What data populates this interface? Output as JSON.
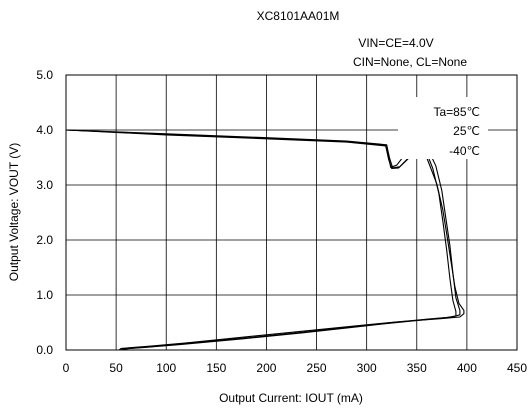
{
  "chart_data": {
    "type": "line",
    "title": "XC8101AA01M",
    "conditions": [
      "VIN=CE=4.0V",
      "CIN=None, CL=None"
    ],
    "xlabel": "Output Current: IOUT (mA)",
    "ylabel": "Output Voltage: VOUT (V)",
    "xlim": [
      0,
      450
    ],
    "ylim": [
      0,
      5
    ],
    "xticks": [
      0,
      50,
      100,
      150,
      200,
      250,
      300,
      350,
      400,
      450
    ],
    "yticks": [
      0,
      1,
      2,
      3,
      4,
      5
    ],
    "xtick_labels": [
      "0",
      "50",
      "100",
      "150",
      "200",
      "250",
      "300",
      "350",
      "400",
      "450"
    ],
    "ytick_labels": [
      "0.0",
      "1.0",
      "2.0",
      "3.0",
      "4.0",
      "5.0"
    ],
    "grid": true,
    "legend_position": "top-right",
    "series": [
      {
        "name": "Ta=85℃",
        "x": [
          0,
          100,
          200,
          280,
          320,
          322,
          324,
          330,
          338,
          346,
          352,
          356,
          362,
          370,
          376,
          380,
          384,
          388,
          392,
          397,
          397,
          393,
          375,
          330,
          295,
          240,
          180,
          120,
          85,
          55,
          53
        ],
        "y": [
          4.0,
          3.93,
          3.86,
          3.8,
          3.73,
          3.5,
          3.32,
          3.36,
          3.55,
          3.67,
          3.72,
          3.68,
          3.4,
          3.02,
          2.55,
          2.1,
          1.62,
          1.15,
          0.85,
          0.72,
          0.66,
          0.6,
          0.57,
          0.51,
          0.45,
          0.35,
          0.24,
          0.13,
          0.07,
          0.03,
          0.0
        ]
      },
      {
        "name": "25℃",
        "x": [
          0,
          100,
          200,
          280,
          320,
          323,
          326,
          333,
          342,
          350,
          357,
          362,
          369,
          375,
          379,
          383,
          386,
          389,
          393,
          393,
          385,
          360,
          320,
          290,
          240,
          180,
          120,
          85,
          57,
          55
        ],
        "y": [
          4.0,
          3.92,
          3.85,
          3.79,
          3.72,
          3.48,
          3.31,
          3.33,
          3.5,
          3.62,
          3.7,
          3.62,
          3.35,
          2.9,
          2.4,
          1.9,
          1.4,
          0.95,
          0.72,
          0.64,
          0.6,
          0.56,
          0.49,
          0.43,
          0.33,
          0.22,
          0.12,
          0.06,
          0.02,
          0.0
        ]
      },
      {
        "name": "-40℃",
        "x": [
          0,
          100,
          200,
          280,
          319,
          322,
          325,
          332,
          341,
          349,
          355,
          360,
          366,
          372,
          376,
          380,
          383,
          386,
          389,
          389,
          380,
          352,
          315,
          285,
          235,
          175,
          115,
          80,
          59,
          57
        ],
        "y": [
          4.0,
          3.91,
          3.84,
          3.78,
          3.71,
          3.46,
          3.3,
          3.31,
          3.47,
          3.6,
          3.68,
          3.58,
          3.3,
          2.85,
          2.35,
          1.8,
          1.3,
          0.9,
          0.7,
          0.62,
          0.59,
          0.54,
          0.47,
          0.41,
          0.31,
          0.2,
          0.1,
          0.05,
          0.02,
          0.0
        ]
      }
    ]
  }
}
